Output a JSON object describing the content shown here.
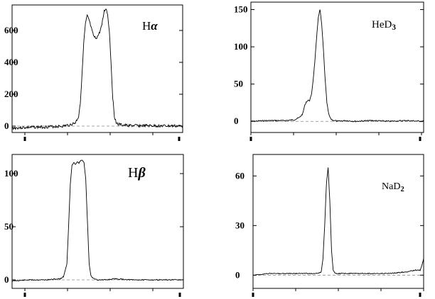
{
  "chart_data": [
    {
      "type": "line",
      "title": "Hα",
      "title_text": "H",
      "title_greek": "α",
      "ylim": [
        -40,
        760
      ],
      "yticks": [
        0,
        200,
        400,
        600
      ],
      "xlim": [
        0,
        100
      ],
      "baseline": 0,
      "series": [
        {
          "x": [
            0,
            10,
            20,
            30,
            34,
            37,
            39,
            40,
            41,
            42,
            43,
            44,
            45,
            46,
            47,
            48,
            49,
            50,
            51,
            52,
            53,
            54,
            55,
            56,
            57,
            58,
            59,
            60,
            61,
            62,
            64,
            66,
            70,
            80,
            90,
            100
          ],
          "values": [
            -12,
            -8,
            -5,
            0,
            8,
            20,
            60,
            150,
            320,
            520,
            640,
            690,
            670,
            630,
            590,
            560,
            550,
            560,
            580,
            610,
            660,
            720,
            740,
            700,
            600,
            400,
            180,
            60,
            25,
            12,
            8,
            5,
            3,
            2,
            1,
            0
          ]
        }
      ]
    },
    {
      "type": "line",
      "title": "HeD3",
      "title_text": "HeD",
      "title_sub": "3",
      "ylim": [
        -15,
        160
      ],
      "yticks": [
        0,
        50,
        100,
        150
      ],
      "xlim": [
        0,
        100
      ],
      "baseline": 0,
      "series": [
        {
          "x": [
            0,
            10,
            20,
            25,
            28,
            30,
            31,
            32,
            33,
            34,
            35,
            36,
            37,
            38,
            39,
            40,
            41,
            42,
            43,
            44,
            45,
            46,
            47,
            48,
            49,
            50,
            55,
            60,
            70,
            80,
            90,
            100
          ],
          "values": [
            0,
            1,
            1,
            2,
            5,
            10,
            20,
            26,
            28,
            28,
            35,
            55,
            80,
            110,
            140,
            150,
            130,
            95,
            55,
            25,
            10,
            4,
            2,
            1,
            1,
            0,
            1,
            0,
            1,
            0,
            1,
            0
          ]
        }
      ]
    },
    {
      "type": "line",
      "title": "Hβ",
      "title_text": "H",
      "title_greek": "β",
      "ylim": [
        -8,
        118
      ],
      "yticks": [
        0,
        50,
        100
      ],
      "xlim": [
        0,
        100
      ],
      "baseline": 0,
      "series": [
        {
          "x": [
            0,
            10,
            20,
            28,
            30,
            32,
            33,
            34,
            35,
            36,
            37,
            38,
            39,
            40,
            41,
            42,
            43,
            44,
            45,
            46,
            47,
            48,
            50,
            55,
            60,
            70,
            80,
            90,
            100
          ],
          "values": [
            -1,
            0,
            0,
            1,
            3,
            15,
            50,
            90,
            108,
            110,
            109,
            111,
            110,
            112,
            113,
            110,
            95,
            55,
            15,
            4,
            2,
            1,
            0,
            0,
            1,
            0,
            0,
            0,
            0
          ]
        }
      ]
    },
    {
      "type": "line",
      "title": "NaD2",
      "title_text": "NaD",
      "title_sub": "2",
      "ylim": [
        -8,
        73
      ],
      "yticks": [
        0,
        30,
        60
      ],
      "xlim": [
        0,
        100
      ],
      "baseline": 0,
      "series": [
        {
          "x": [
            0,
            10,
            20,
            30,
            38,
            40,
            41,
            42,
            43,
            44,
            45,
            46,
            47,
            48,
            50,
            60,
            70,
            80,
            90,
            95,
            98,
            99,
            100
          ],
          "values": [
            0,
            1,
            1,
            1,
            1,
            2,
            10,
            30,
            55,
            65,
            45,
            15,
            3,
            1,
            1,
            1,
            1,
            1,
            2,
            3,
            3,
            6,
            10
          ]
        }
      ]
    }
  ]
}
